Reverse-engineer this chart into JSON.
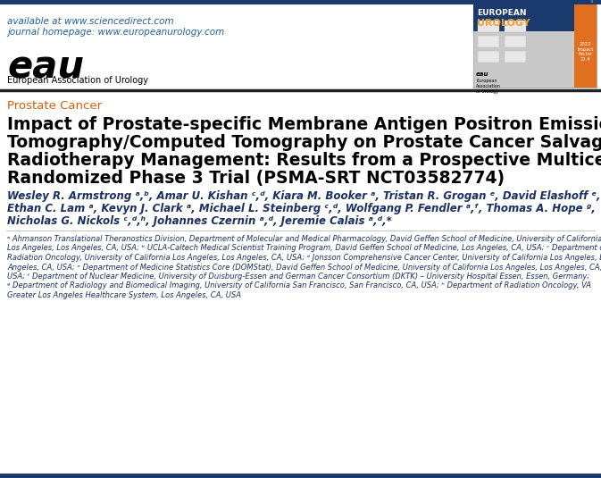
{
  "bg_color": "#ffffff",
  "top_bar_color": "#1a3a6e",
  "bottom_bar_color": "#1a3a6e",
  "available_text": "available at www.sciencedirect.com",
  "journal_text": "journal homepage: www.europeanurology.com",
  "header_link_color": "#2060a0",
  "section_label": "Prostate Cancer",
  "section_label_color": "#d4600a",
  "title_line1": "Impact of Prostate-specific Membrane Antigen Positron Emission",
  "title_line2": "Tomography/Computed Tomography on Prostate Cancer Salvage",
  "title_line3": "Radiotherapy Management: Results from a Prospective Multicenter",
  "title_line4": "Randomized Phase 3 Trial (PSMA-SRT NCT03582774)",
  "title_color": "#000000",
  "author_line1": "Wesley R. Armstrong ᵃ,ᵇ, Amar U. Kishan ᶜ,ᵈ, Kiara M. Booker ᵃ, Tristan R. Grogan ᵉ, David Elashoff ᵉ,",
  "author_line2": "Ethan C. Lam ᵃ, Kevyn J. Clark ᵃ, Michael L. Steinberg ᶜ,ᵈ, Wolfgang P. Fendler ᵃ,ᶠ, Thomas A. Hope ᵍ,",
  "author_line3": "Nicholas G. Nickols ᶜ,ᵈ,ʰ, Johannes Czernin ᵃ,ᵈ, Jeremie Calais ᵃ,ᵈ,*",
  "author_color": "#1a3060",
  "affil_line1": "ᵃ Ahmanson Translational Theranostics Division, Department of Molecular and Medical Pharmacology, David Geffen School of Medicine, University of California",
  "affil_line2": "Los Angeles, Los Angeles, CA, USA; ᵇ UCLA-Caltech Medical Scientist Training Program, David Geffen School of Medicine, Los Angeles, CA, USA; ᶜ Department of",
  "affil_line3": "Radiation Oncology, University of California Los Angeles, Los Angeles, CA, USA; ᵈ Jonsson Comprehensive Cancer Center, University of California Los Angeles, Los",
  "affil_line4": "Angeles, CA, USA; ᵉ Department of Medicine Statistics Core (DOMStat), David Geffen School of Medicine, University of California Los Angeles, Los Angeles, CA,",
  "affil_line5": "USA; ᶠ Department of Nuclear Medicine, University of Duisburg-Essen and German Cancer Consortium (DKTK) – University Hospital Essen, Essen, Germany;",
  "affil_line6": "ᵍ Department of Radiology and Biomedical Imaging, University of California San Francisco, San Francisco, CA, USA; ʰ Department of Radiation Oncology, VA",
  "affil_line7": "Greater Los Angeles Healthcare System, Los Angeles, CA, USA",
  "affil_color": "#1a3060",
  "sep_line_color": "#000000",
  "cover_blue": "#1a3a6e",
  "cover_orange": "#e07020",
  "cover_gray": "#c8c8c8",
  "eau_logo_color": "#000000",
  "cover_white": "#ffffff"
}
